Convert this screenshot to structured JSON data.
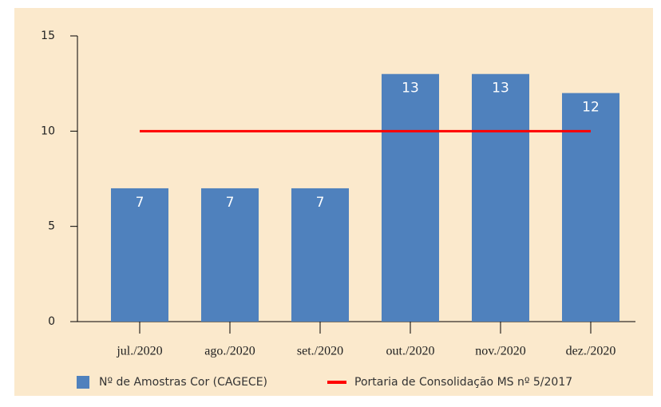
{
  "chart_data": {
    "type": "bar",
    "categories": [
      "jul./2020",
      "ago./2020",
      "set./2020",
      "out./2020",
      "nov./2020",
      "dez./2020"
    ],
    "series": [
      {
        "name": "Nº de Amostras Cor (CAGECE)",
        "type": "bar",
        "color": "#4f81bd",
        "values": [
          7,
          7,
          7,
          13,
          13,
          12
        ]
      },
      {
        "name": "Portaria de Consolidação MS nº 5/2017",
        "type": "line",
        "color": "#ff0000",
        "values": [
          10,
          10,
          10,
          10,
          10,
          10
        ]
      }
    ],
    "ylim": [
      0,
      15
    ],
    "yticks": [
      0,
      5,
      10,
      15
    ],
    "grid": false,
    "legend": "bottom"
  }
}
